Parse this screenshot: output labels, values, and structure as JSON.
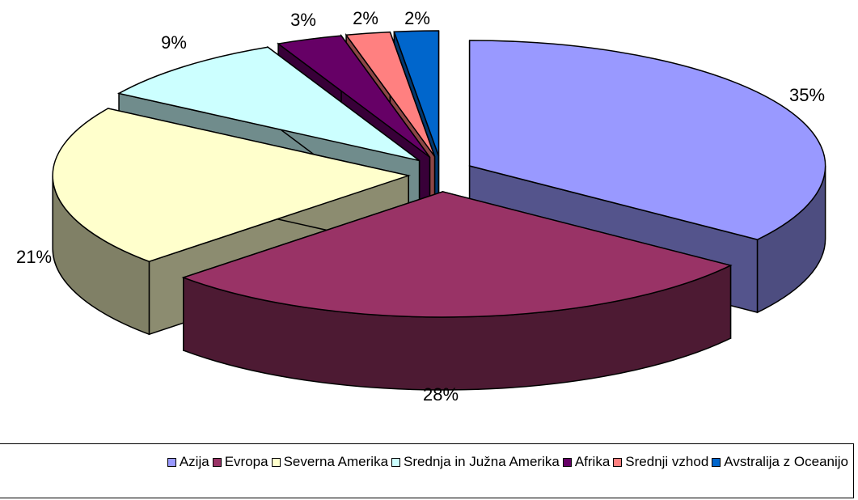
{
  "chart_data": {
    "type": "pie",
    "variant": "3d-exploded",
    "title": "",
    "categories": [
      "Azija",
      "Evropa",
      "Severna Amerika",
      "Srednja in Južna Amerika",
      "Afrika",
      "Srednji vzhod",
      "Avstralija z Oceanijo"
    ],
    "values": [
      35,
      28,
      21,
      9,
      3,
      2,
      2
    ],
    "labels": [
      "35%",
      "28%",
      "21%",
      "9%",
      "3%",
      "2%",
      "2%"
    ],
    "colors": [
      "#9999ff",
      "#993366",
      "#ffffcc",
      "#ccffff",
      "#660066",
      "#ff8080",
      "#0066cc"
    ],
    "legend_position": "bottom"
  }
}
